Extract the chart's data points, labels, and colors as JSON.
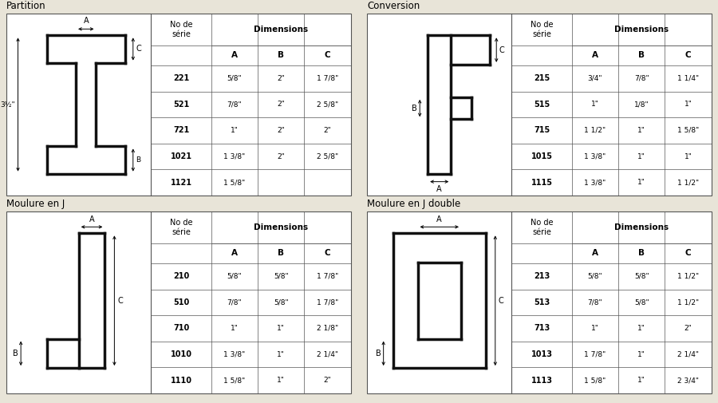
{
  "bg_color": "#e8e4d8",
  "sections": [
    {
      "label": "Partition",
      "rows": [
        [
          "221",
          "5/8\"",
          "2\"",
          "1 7/8\""
        ],
        [
          "521",
          "7/8\"",
          "2\"",
          "2 5/8\""
        ],
        [
          "721",
          "1\"",
          "2\"",
          "2\""
        ],
        [
          "1021",
          "1 3/8\"",
          "2\"",
          "2 5/8\""
        ],
        [
          "1121",
          "1 5/8\"",
          "",
          ""
        ]
      ],
      "diagram": "partition"
    },
    {
      "label": "Conversion",
      "rows": [
        [
          "215",
          "3/4\"",
          "7/8\"",
          "1 1/4\""
        ],
        [
          "515",
          "1\"",
          "1/8\"",
          "1\""
        ],
        [
          "715",
          "1 1/2\"",
          "1\"",
          "1 5/8\""
        ],
        [
          "1015",
          "1 3/8\"",
          "1\"",
          "1\""
        ],
        [
          "1115",
          "1 3/8\"",
          "1\"",
          "1 1/2\""
        ]
      ],
      "diagram": "conversion"
    },
    {
      "label": "Moulure en J",
      "rows": [
        [
          "210",
          "5/8\"",
          "5/8\"",
          "1 7/8\""
        ],
        [
          "510",
          "7/8\"",
          "5/8\"",
          "1 7/8\""
        ],
        [
          "710",
          "1\"",
          "1\"",
          "2 1/8\""
        ],
        [
          "1010",
          "1 3/8\"",
          "1\"",
          "2 1/4\""
        ],
        [
          "1110",
          "1 5/8\"",
          "1\"",
          "2\""
        ]
      ],
      "diagram": "moulure_j"
    },
    {
      "label": "Moulure en J double",
      "rows": [
        [
          "213",
          "5/8\"",
          "5/8\"",
          "1 1/2\""
        ],
        [
          "513",
          "7/8\"",
          "5/8\"",
          "1 1/2\""
        ],
        [
          "713",
          "1\"",
          "1\"",
          "2\""
        ],
        [
          "1013",
          "1 7/8\"",
          "1\"",
          "2 1/4\""
        ],
        [
          "1113",
          "1 5/8\"",
          "1\"",
          "2 3/4\""
        ]
      ],
      "diagram": "moulure_j_double"
    }
  ],
  "line_color": "#555555",
  "profile_color": "#222222",
  "header_color": "#dddddd"
}
